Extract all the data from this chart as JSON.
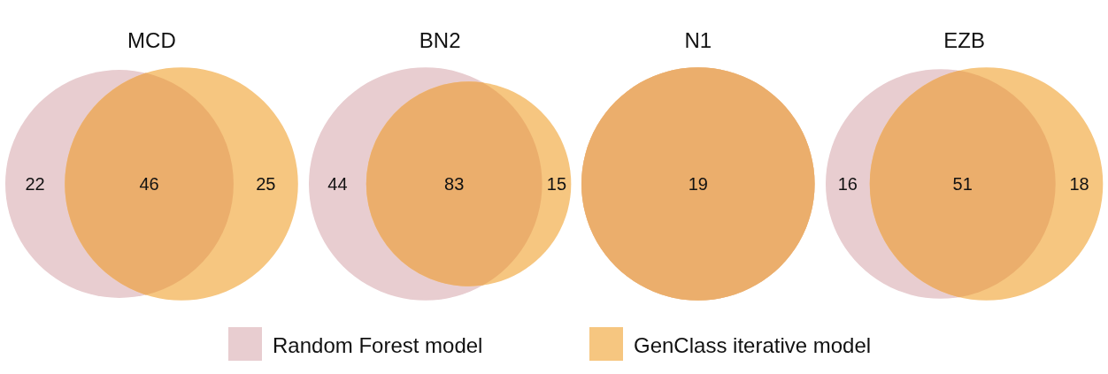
{
  "chart_data": [
    {
      "type": "other",
      "title": "MCD",
      "categories": [
        null,
        null,
        null
      ],
      "values": [
        22,
        46,
        25
      ],
      "colors": [
        "#e8cdd0",
        "#ebae6c",
        "#f6c680"
      ],
      "data_labels": true
    },
    {
      "type": "other",
      "title": "BN2",
      "categories": [
        null,
        null,
        null
      ],
      "values": [
        44,
        83,
        15
      ],
      "colors": [
        "#e8cdd0",
        "#ebae6c",
        "#f6c680"
      ],
      "data_labels": true
    },
    {
      "type": "other",
      "title": "N1",
      "categories": [
        null,
        null,
        null
      ],
      "values": [
        null,
        19,
        null
      ],
      "colors": [
        "#e8cdd0",
        "#ebae6c",
        "#f6c680"
      ],
      "data_labels": true
    },
    {
      "type": "other",
      "title": "EZB",
      "categories": [
        null,
        null,
        null
      ],
      "values": [
        16,
        51,
        18
      ],
      "colors": [
        "#e8cdd0",
        "#ebae6c",
        "#f6c680"
      ],
      "data_labels": true
    },
    {
      "type": "other",
      "categories": [
        "Random Forest model",
        "GenClass iterative model"
      ],
      "colors": [
        "#e8cdd0",
        "#f6c680"
      ]
    }
  ]
}
